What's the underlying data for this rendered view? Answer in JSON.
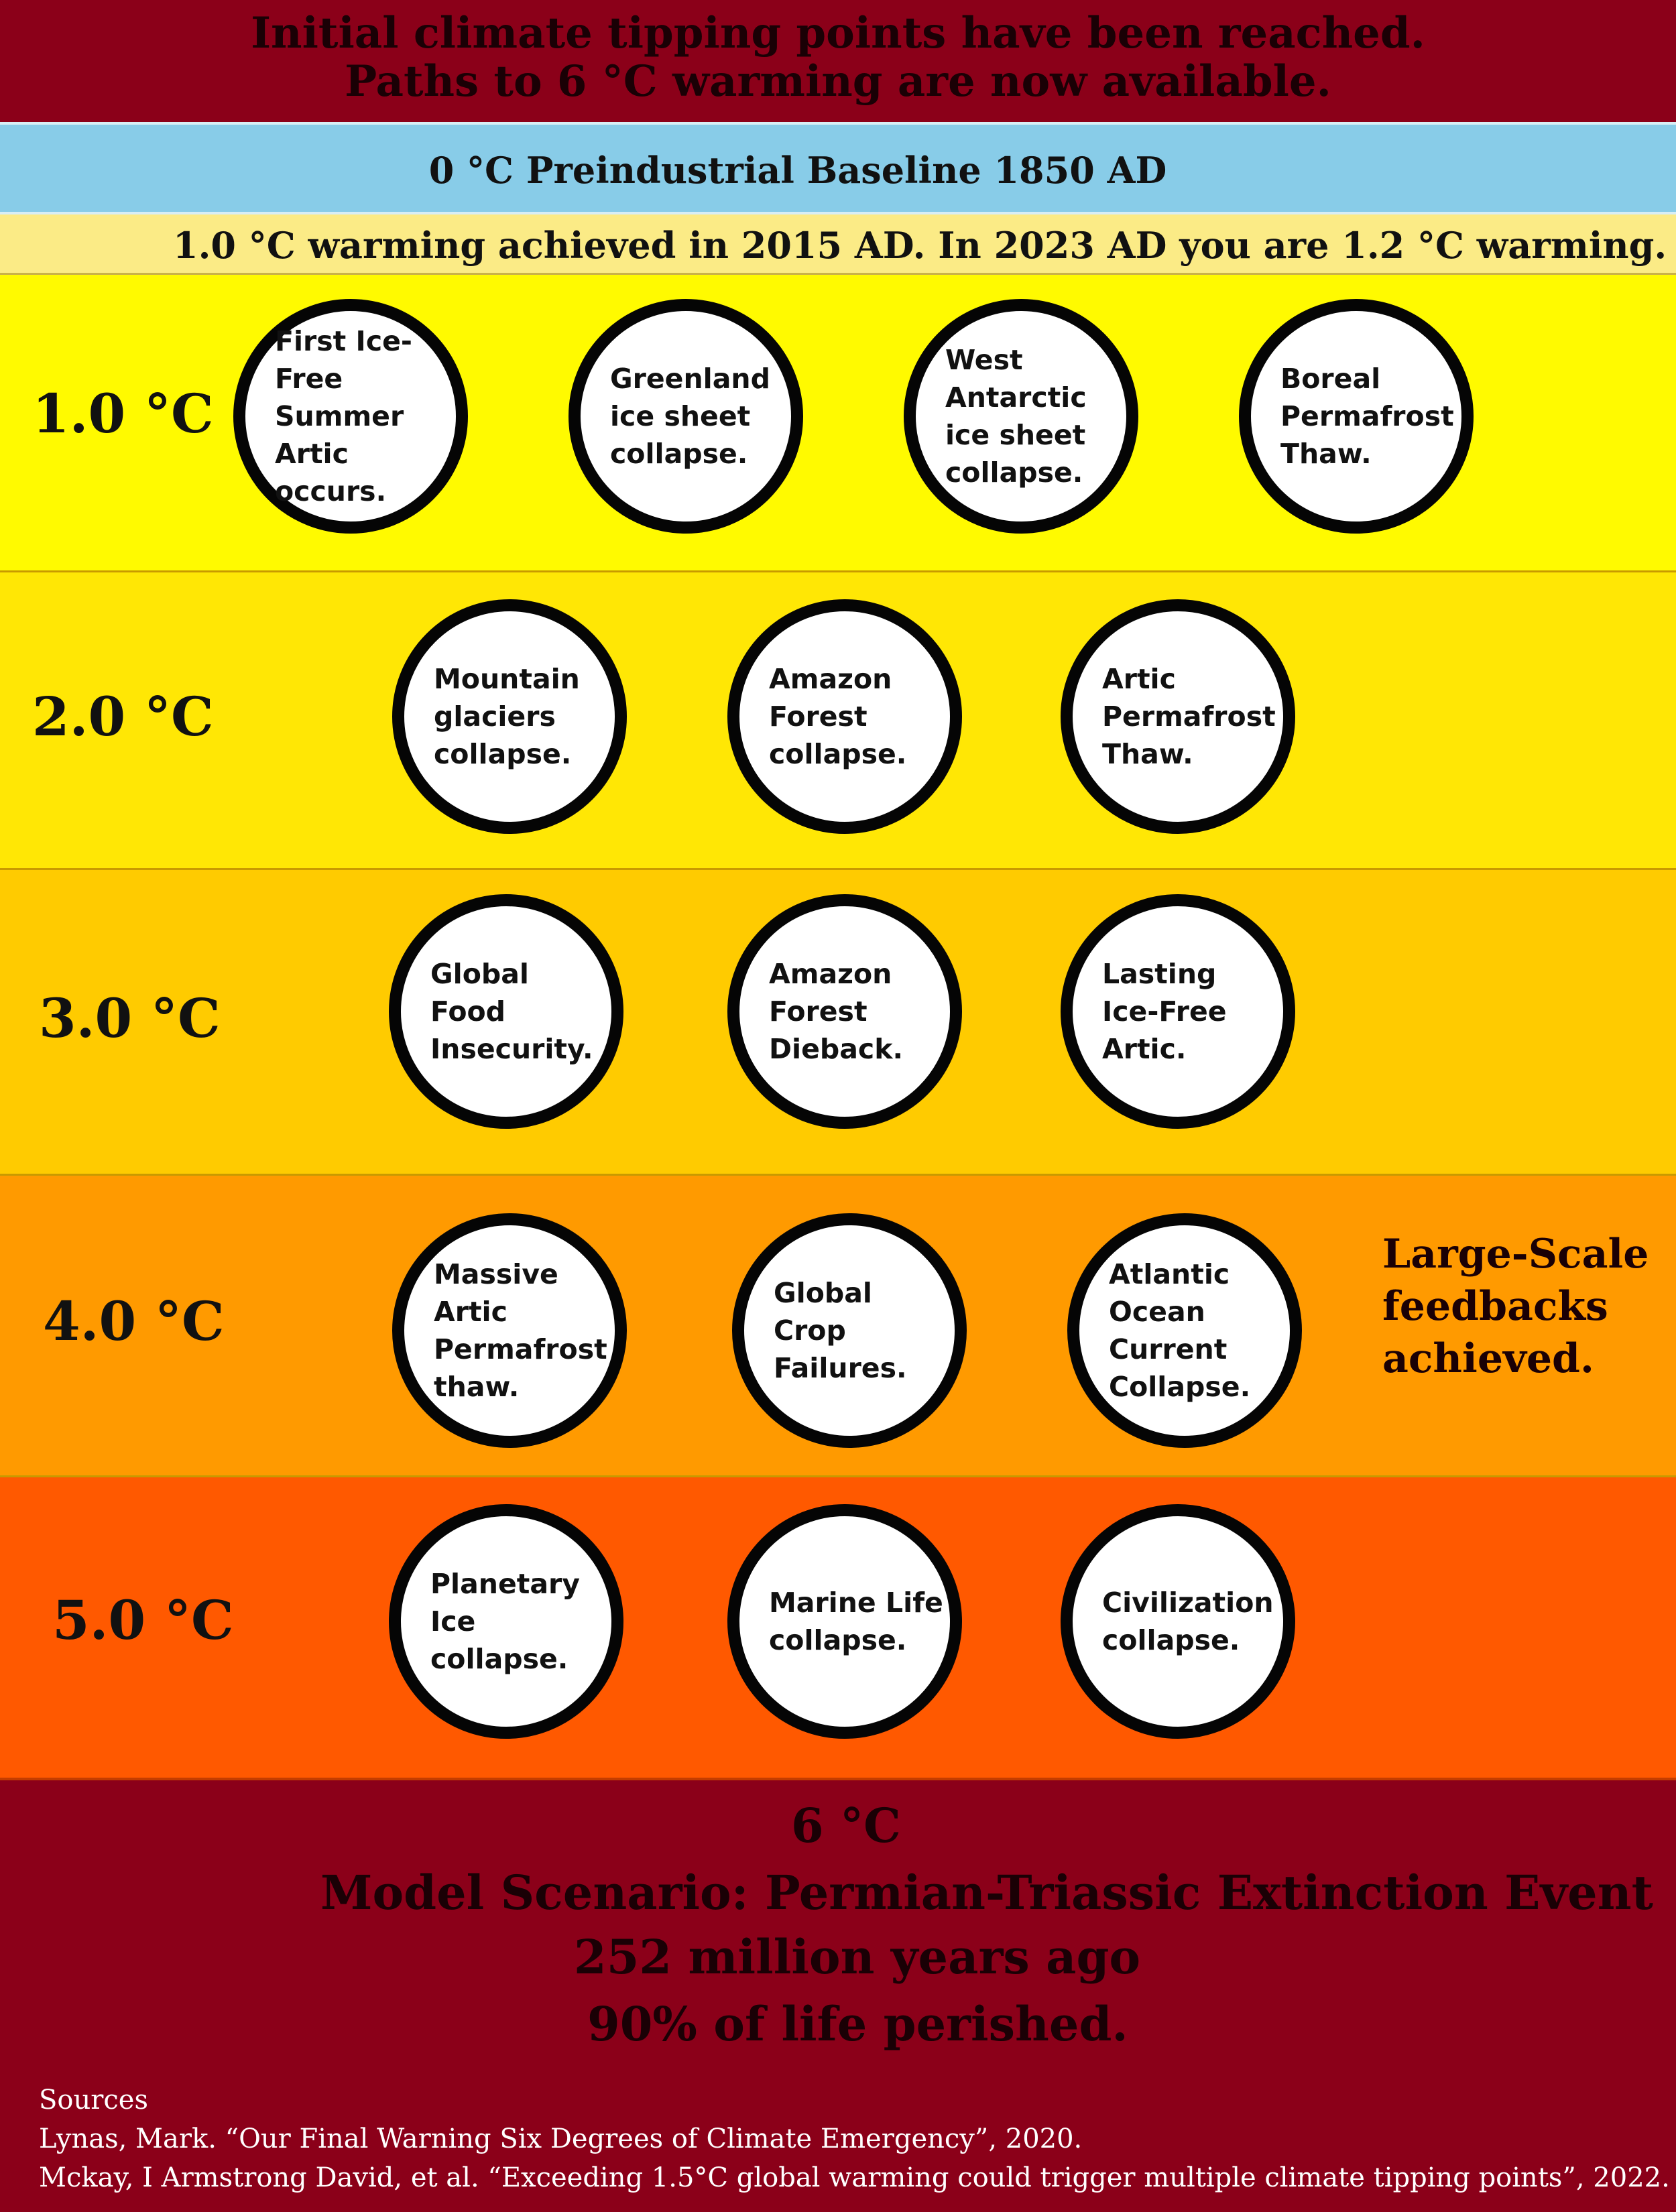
{
  "header": {
    "line1": "Initial climate tipping points have been reached.",
    "line2": "Paths to 6 °C warming are now available."
  },
  "baseline": {
    "label": "0 °C Preindustrial Baseline 1850 AD"
  },
  "achieved": {
    "label": "1.0 °C warming achieved in 2015 AD. In 2023 AD you are 1.2 °C warming."
  },
  "rows": [
    {
      "temp": "1.0 °C",
      "points": [
        "First Ice-Free\nSummer Artic\noccurs.",
        "Greenland\nice sheet\ncollapse.",
        "West\nAntarctic\nice sheet\ncollapse.",
        "Boreal\nPermafrost\nThaw."
      ]
    },
    {
      "temp": "2.0 °C",
      "points": [
        "Mountain\nglaciers\ncollapse.",
        "Amazon\nForest\ncollapse.",
        "Artic\nPermafrost\nThaw."
      ]
    },
    {
      "temp": "3.0 °C",
      "points": [
        "Global Food\nInsecurity.",
        "Amazon\nForest\nDieback.",
        "Lasting\nIce-Free\nArtic."
      ]
    },
    {
      "temp": "4.0 °C",
      "points": [
        "Massive\nArtic\nPermafrost\nthaw.",
        "Global Crop\nFailures.",
        "Atlantic\nOcean\nCurrent\nCollapse."
      ],
      "note": "Large-Scale\nfeedbacks\nachieved."
    },
    {
      "temp": "5.0 °C",
      "points": [
        "Planetary\nIce\ncollapse.",
        "Marine Life\ncollapse.",
        "Civilization\ncollapse."
      ]
    }
  ],
  "footer": {
    "temp": "6 °C",
    "scenario": "Model Scenario: Permian-Triassic Extinction Event",
    "age": "252 million years ago",
    "perished": "90% of life perished.",
    "sources_title": "Sources",
    "source1": "Lynas, Mark. “Our Final Warning Six Degrees of Climate Emergency”, 2020.",
    "source2": "Mckay, I Armstrong David, et al. “Exceeding 1.5°C global warming could trigger multiple climate tipping points”, 2022."
  }
}
